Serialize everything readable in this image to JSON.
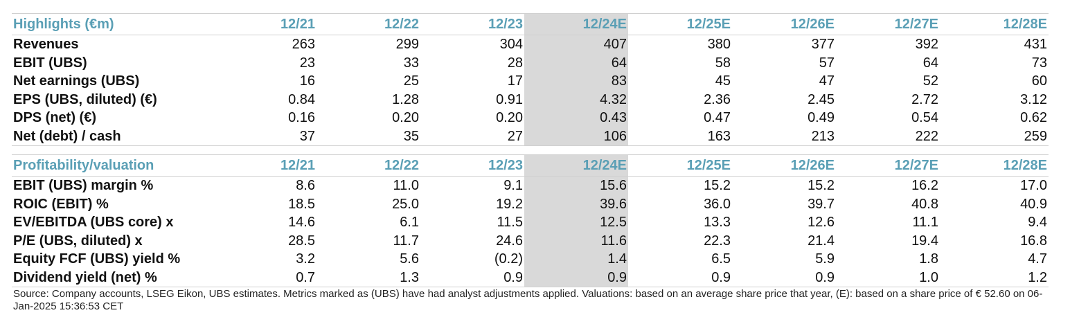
{
  "highlights": {
    "header": [
      "Highlights (€m)",
      "12/21",
      "12/22",
      "12/23",
      "12/24E",
      "12/25E",
      "12/26E",
      "12/27E",
      "12/28E"
    ],
    "rows": [
      {
        "label": "Revenues",
        "values": [
          "263",
          "299",
          "304",
          "407",
          "380",
          "377",
          "392",
          "431"
        ]
      },
      {
        "label": "EBIT (UBS)",
        "values": [
          "23",
          "33",
          "28",
          "64",
          "58",
          "57",
          "64",
          "73"
        ]
      },
      {
        "label": "Net earnings (UBS)",
        "values": [
          "16",
          "25",
          "17",
          "83",
          "45",
          "47",
          "52",
          "60"
        ]
      },
      {
        "label": "EPS (UBS, diluted) (€)",
        "values": [
          "0.84",
          "1.28",
          "0.91",
          "4.32",
          "2.36",
          "2.45",
          "2.72",
          "3.12"
        ]
      },
      {
        "label": "DPS (net) (€)",
        "values": [
          "0.16",
          "0.20",
          "0.20",
          "0.43",
          "0.47",
          "0.49",
          "0.54",
          "0.62"
        ]
      },
      {
        "label": "Net (debt) / cash",
        "values": [
          "37",
          "35",
          "27",
          "106",
          "163",
          "213",
          "222",
          "259"
        ]
      }
    ]
  },
  "profitability": {
    "header": [
      "Profitability/valuation",
      "12/21",
      "12/22",
      "12/23",
      "12/24E",
      "12/25E",
      "12/26E",
      "12/27E",
      "12/28E"
    ],
    "rows": [
      {
        "label": "EBIT (UBS) margin %",
        "values": [
          "8.6",
          "11.0",
          "9.1",
          "15.6",
          "15.2",
          "15.2",
          "16.2",
          "17.0"
        ]
      },
      {
        "label": "ROIC (EBIT) %",
        "values": [
          "18.5",
          "25.0",
          "19.2",
          "39.6",
          "36.0",
          "39.7",
          "40.8",
          "40.9"
        ]
      },
      {
        "label": "EV/EBITDA (UBS core) x",
        "values": [
          "14.6",
          "6.1",
          "11.5",
          "12.5",
          "13.3",
          "12.6",
          "11.1",
          "9.4"
        ]
      },
      {
        "label": "P/E (UBS, diluted) x",
        "values": [
          "28.5",
          "11.7",
          "24.6",
          "11.6",
          "22.3",
          "21.4",
          "19.4",
          "16.8"
        ]
      },
      {
        "label": "Equity FCF (UBS) yield %",
        "values": [
          "3.2",
          "5.6",
          "(0.2)",
          "1.4",
          "6.5",
          "5.9",
          "1.8",
          "4.7"
        ]
      },
      {
        "label": "Dividend yield (net) %",
        "values": [
          "0.7",
          "1.3",
          "0.9",
          "0.9",
          "0.9",
          "0.9",
          "1.0",
          "1.2"
        ]
      }
    ]
  },
  "footer": {
    "source_text": "Source: Company accounts, LSEG Eikon, UBS estimates. Metrics marked as (UBS) have had analyst adjustments applied. Valuations: based on an average share price that year, (E): based on a share price of € 52.60 on 06-Jan-2025 15:36:53 CET"
  },
  "colors": {
    "header_text": "#5a9fb5",
    "estimate_shade": "#d9d9d9"
  }
}
